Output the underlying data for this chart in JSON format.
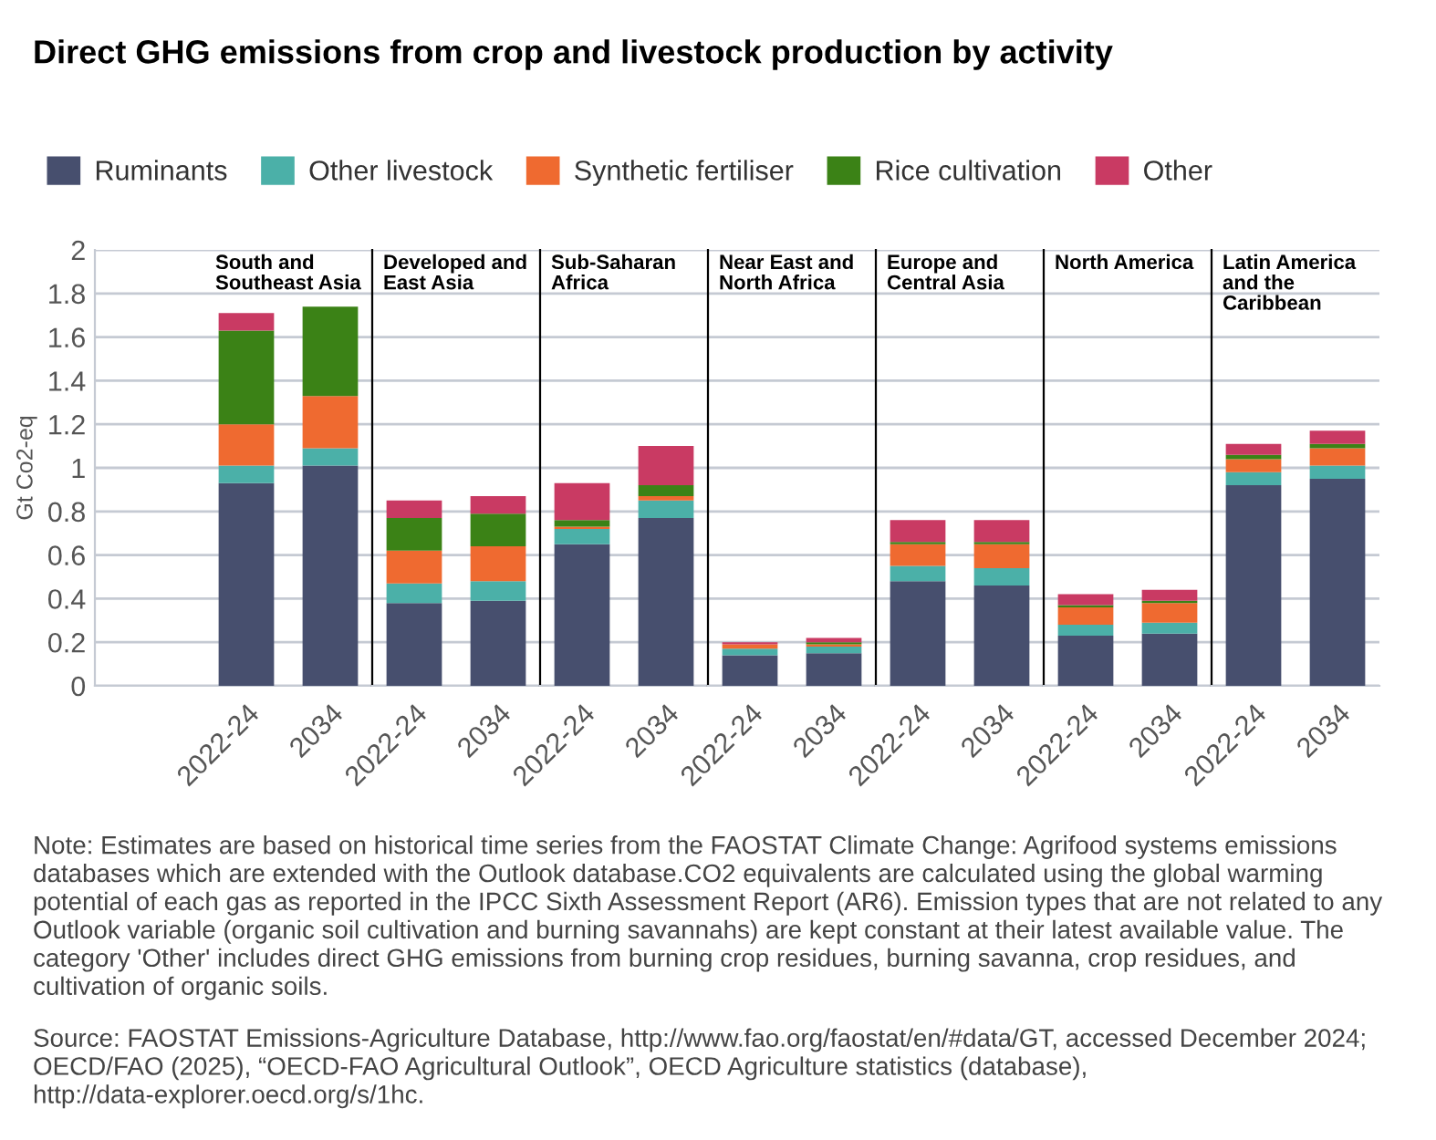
{
  "chart_data": [
    {
      "type": "bar",
      "title": "Direct GHG emissions from crop and livestock production by activity",
      "subtitle": "South and Southeast Asia",
      "ylabel": "Gt Co2-eq",
      "categories": [
        "2022-24",
        "2034"
      ],
      "stacked": true,
      "legend": "top",
      "grid": "y",
      "ylim": [
        0,
        2
      ],
      "yticks": [
        0,
        0.2,
        0.4,
        0.6,
        0.8,
        1,
        1.2,
        1.4,
        1.6,
        1.8,
        2
      ],
      "annotations": [
        "Note: Estimates are based on historical time series from the FAOSTAT Climate Change: Agrifood systems emissions databases which are extended with the Outlook database.CO2 equivalents are calculated using the global warming potential of each gas as reported in the IPCC Sixth Assessment Report (AR6). Emission types that are not related to any Outlook variable (organic soil cultivation and burning savannahs) are kept constant at their latest available value. The category 'Other' includes direct GHG emissions from burning crop residues, burning savanna, crop residues, and cultivation of organic soils.",
        "Source: FAOSTAT Emissions-Agriculture Database, http://www.fao.org/faostat/en/#data/GT, accessed December 2024; OECD/FAO (2025), “OECD-FAO Agricultural Outlook”, OECD Agriculture statistics (database), http://data-explorer.oecd.org/s/1hc."
      ],
      "series": [
        {
          "name": "Ruminants",
          "color": "#474f6e",
          "values": [
            0.93,
            1.01
          ]
        },
        {
          "name": "Other livestock",
          "color": "#4bb0a8",
          "values": [
            0.08,
            0.08
          ]
        },
        {
          "name": "Synthetic fertiliser",
          "color": "#ef6a30",
          "values": [
            0.19,
            0.24
          ]
        },
        {
          "name": "Rice cultivation",
          "color": "#3b8216",
          "values": [
            0.43,
            0.41
          ]
        },
        {
          "name": "Other",
          "color": "#c93a63",
          "values": [
            0.08,
            null
          ]
        }
      ]
    },
    {
      "type": "bar",
      "subtitle": "Developed and East Asia",
      "categories": [
        "2022-24",
        "2034"
      ],
      "stacked": true,
      "grid": "y",
      "ylim": [
        0,
        2
      ],
      "yticks": [
        0,
        0.2,
        0.4,
        0.6,
        0.8,
        1,
        1.2,
        1.4,
        1.6,
        1.8,
        2
      ],
      "tick_labels": "x",
      "series": [
        {
          "color": "#474f6e",
          "values": [
            0.38,
            0.39
          ]
        },
        {
          "color": "#4bb0a8",
          "values": [
            0.09,
            0.09
          ]
        },
        {
          "color": "#ef6a30",
          "values": [
            0.15,
            0.16
          ]
        },
        {
          "color": "#3b8216",
          "values": [
            0.15,
            0.15
          ]
        },
        {
          "color": "#c93a63",
          "values": [
            0.08,
            0.08
          ]
        }
      ]
    },
    {
      "type": "bar",
      "subtitle": "Sub-Saharan Africa",
      "categories": [
        "2022-24",
        "2034"
      ],
      "stacked": true,
      "grid": "y",
      "ylim": [
        0,
        2
      ],
      "yticks": [
        0,
        0.2,
        0.4,
        0.6,
        0.8,
        1,
        1.2,
        1.4,
        1.6,
        1.8,
        2
      ],
      "tick_labels": "x",
      "series": [
        {
          "color": "#474f6e",
          "values": [
            0.65,
            0.77
          ]
        },
        {
          "color": "#4bb0a8",
          "values": [
            0.07,
            0.08
          ]
        },
        {
          "color": "#ef6a30",
          "values": [
            0.01,
            0.02
          ]
        },
        {
          "color": "#3b8216",
          "values": [
            0.03,
            0.05
          ]
        },
        {
          "color": "#c93a63",
          "values": [
            0.17,
            0.18
          ]
        }
      ]
    },
    {
      "type": "bar",
      "subtitle": "Near East and North Africa",
      "categories": [
        "2022-24",
        "2034"
      ],
      "stacked": true,
      "grid": "y",
      "ylim": [
        0,
        2
      ],
      "yticks": [
        0,
        0.2,
        0.4,
        0.6,
        0.8,
        1,
        1.2,
        1.4,
        1.6,
        1.8,
        2
      ],
      "tick_labels": "x",
      "series": [
        {
          "color": "#474f6e",
          "values": [
            0.14,
            0.15
          ]
        },
        {
          "color": "#4bb0a8",
          "values": [
            0.03,
            0.03
          ]
        },
        {
          "color": "#ef6a30",
          "values": [
            0.02,
            0.01
          ]
        },
        {
          "color": "#3b8216",
          "values": [
            null,
            0.01
          ]
        },
        {
          "color": "#c93a63",
          "values": [
            0.01,
            0.02
          ]
        }
      ]
    },
    {
      "type": "bar",
      "subtitle": "Europe and Central Asia",
      "categories": [
        "2022-24",
        "2034"
      ],
      "stacked": true,
      "grid": "y",
      "ylim": [
        0,
        2
      ],
      "yticks": [
        0,
        0.2,
        0.4,
        0.6,
        0.8,
        1,
        1.2,
        1.4,
        1.6,
        1.8,
        2
      ],
      "tick_labels": "x",
      "series": [
        {
          "color": "#474f6e",
          "values": [
            0.48,
            0.46
          ]
        },
        {
          "color": "#4bb0a8",
          "values": [
            0.07,
            0.08
          ]
        },
        {
          "color": "#ef6a30",
          "values": [
            0.1,
            0.11
          ]
        },
        {
          "color": "#3b8216",
          "values": [
            0.01,
            0.01
          ]
        },
        {
          "color": "#c93a63",
          "values": [
            0.1,
            0.1
          ]
        }
      ]
    },
    {
      "type": "bar",
      "subtitle": "North America",
      "categories": [
        "2022-24",
        "2034"
      ],
      "stacked": true,
      "grid": "y",
      "ylim": [
        0,
        2
      ],
      "yticks": [
        0,
        0.2,
        0.4,
        0.6,
        0.8,
        1,
        1.2,
        1.4,
        1.6,
        1.8,
        2
      ],
      "tick_labels": "x",
      "series": [
        {
          "color": "#474f6e",
          "values": [
            0.23,
            0.24
          ]
        },
        {
          "color": "#4bb0a8",
          "values": [
            0.05,
            0.05
          ]
        },
        {
          "color": "#ef6a30",
          "values": [
            0.08,
            0.09
          ]
        },
        {
          "color": "#3b8216",
          "values": [
            0.01,
            0.01
          ]
        },
        {
          "color": "#c93a63",
          "values": [
            0.05,
            0.05
          ]
        }
      ]
    },
    {
      "type": "bar",
      "subtitle": "Latin America and the Caribbean",
      "categories": [
        "2022-24",
        "2034"
      ],
      "stacked": true,
      "grid": "y",
      "ylim": [
        0,
        2
      ],
      "yticks": [
        0,
        0.2,
        0.4,
        0.6,
        0.8,
        1,
        1.2,
        1.4,
        1.6,
        1.8,
        2
      ],
      "tick_labels": "x",
      "series": [
        {
          "color": "#474f6e",
          "values": [
            0.92,
            0.95
          ]
        },
        {
          "color": "#4bb0a8",
          "values": [
            0.06,
            0.06
          ]
        },
        {
          "color": "#ef6a30",
          "values": [
            0.06,
            0.08
          ]
        },
        {
          "color": "#3b8216",
          "values": [
            0.02,
            0.02
          ]
        },
        {
          "color": "#c93a63",
          "values": [
            0.05,
            0.06
          ]
        }
      ]
    }
  ]
}
